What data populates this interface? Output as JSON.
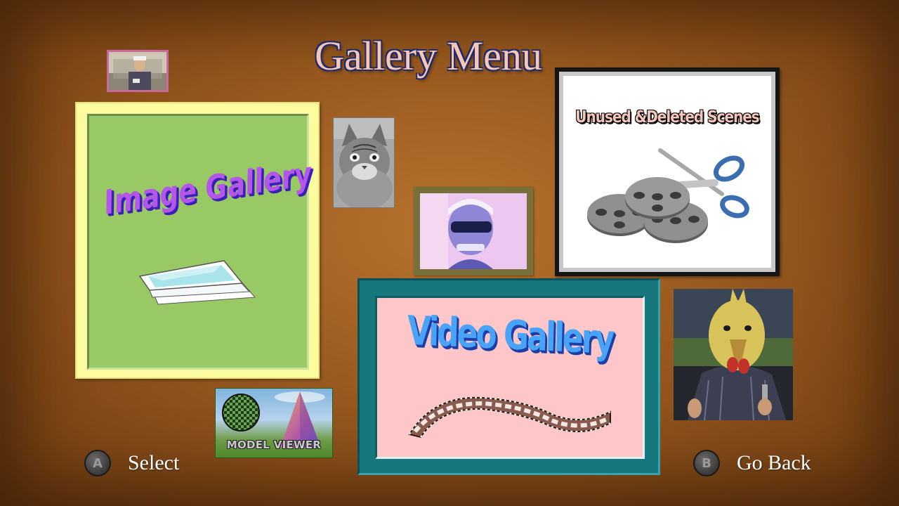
{
  "screen": {
    "title": "Gallery Menu"
  },
  "menu": {
    "image_gallery": {
      "label": "Image Gallery",
      "icon": "photo-stack-icon"
    },
    "unused_scenes": {
      "label": "Unused &Deleted Scenes",
      "icon": "film-reels-scissors-icon"
    },
    "video_gallery": {
      "label": "Video Gallery",
      "icon": "film-strip-icon"
    },
    "model_viewer": {
      "label": "MODEL VIEWER"
    }
  },
  "controls": {
    "select": {
      "button": "A",
      "label": "Select"
    },
    "back": {
      "button": "B",
      "label": "Go Back"
    }
  },
  "colors": {
    "background": "#98591f",
    "image_gallery_frame": "#fdfba0",
    "image_gallery_fill": "#99c965",
    "video_gallery_frame": "#17777f",
    "video_gallery_fill": "#fdc7c9",
    "wordart_purple": "#b457e8",
    "wordart_blue": "#49a4f7"
  }
}
